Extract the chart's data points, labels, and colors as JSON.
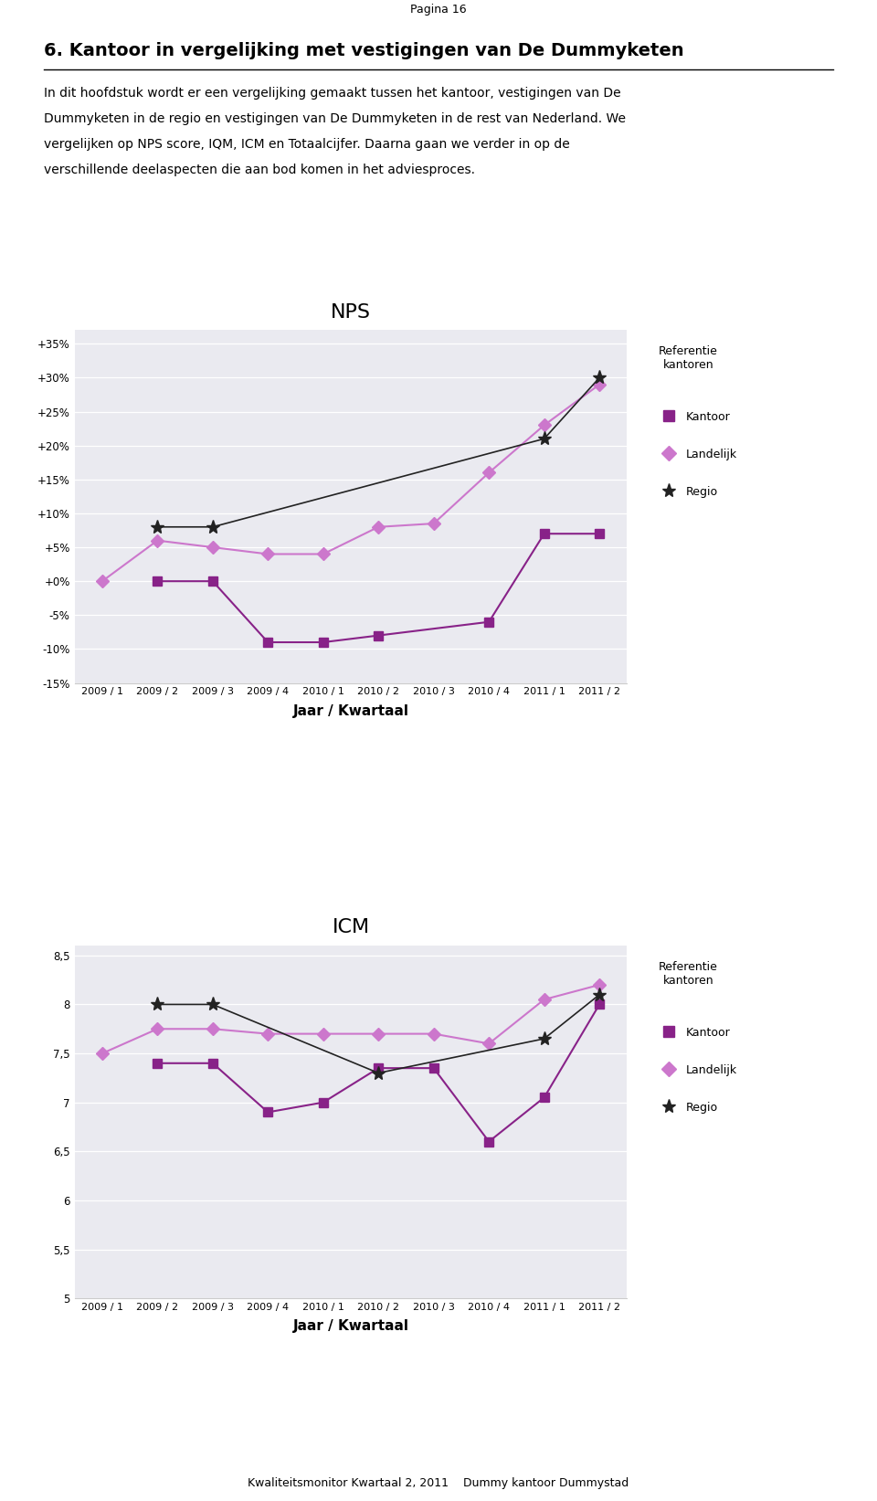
{
  "page_label": "Pagina 16",
  "main_title": "6. Kantoor in vergelijking met vestigingen van De Dummyketen",
  "intro_lines": [
    "In dit hoofdstuk wordt er een vergelijking gemaakt tussen het kantoor, vestigingen van De",
    "Dummyketen in de regio en vestigingen van De Dummyketen in de rest van Nederland. We",
    "vergelijken op NPS score, IQM, ICM en Totaalcijfer. Daarna gaan we verder in op de",
    "verschillende deelaspecten die aan bod komen in het adviesproces."
  ],
  "footer_text": "Kwaliteitsmonitor Kwartaal 2, 2011    Dummy kantoor Dummystad",
  "x_labels": [
    "2009 / 1",
    "2009 / 2",
    "2009 / 3",
    "2009 / 4",
    "2010 / 1",
    "2010 / 2",
    "2010 / 3",
    "2010 / 4",
    "2011 / 1",
    "2011 / 2"
  ],
  "xlabel": "Jaar / Kwartaal",
  "nps_title": "NPS",
  "nps_kantoor": [
    null,
    0.0,
    0.0,
    -9.0,
    -9.0,
    -8.0,
    null,
    -6.0,
    7.0,
    7.0
  ],
  "nps_landelijk": [
    0.0,
    6.0,
    5.0,
    4.0,
    4.0,
    8.0,
    8.5,
    16.0,
    23.0,
    29.0
  ],
  "nps_regio": [
    null,
    8.0,
    8.0,
    null,
    null,
    null,
    null,
    null,
    21.0,
    30.0
  ],
  "nps_ylim": [
    -15,
    37
  ],
  "nps_yticks": [
    -15,
    -10,
    -5,
    0,
    5,
    10,
    15,
    20,
    25,
    30,
    35
  ],
  "nps_ytick_labels": [
    "-15%",
    "-10%",
    "-5%",
    "+0%",
    "+5%",
    "+10%",
    "+15%",
    "+20%",
    "+25%",
    "+30%",
    "+35%"
  ],
  "icm_title": "ICM",
  "icm_kantoor": [
    null,
    7.4,
    7.4,
    6.9,
    7.0,
    7.35,
    7.35,
    6.6,
    7.05,
    8.0
  ],
  "icm_landelijk": [
    7.5,
    7.75,
    7.75,
    7.7,
    7.7,
    7.7,
    7.7,
    7.6,
    8.05,
    8.2
  ],
  "icm_regio": [
    null,
    8.0,
    8.0,
    null,
    null,
    7.3,
    null,
    null,
    7.65,
    8.1
  ],
  "icm_ylim": [
    5.0,
    8.6
  ],
  "icm_yticks": [
    5.0,
    5.5,
    6.0,
    6.5,
    7.0,
    7.5,
    8.0,
    8.5
  ],
  "icm_ytick_labels": [
    "5",
    "5,5",
    "6",
    "6,5",
    "7",
    "7,5",
    "8",
    "8,5"
  ],
  "legend_ref_label": "Referentie\nkantoren",
  "legend_label_kantoor": "Kantoor",
  "legend_label_landelijk": "Landelijk",
  "legend_label_regio": "Regio",
  "color_kantoor": "#882288",
  "color_landelijk": "#CC77CC",
  "color_regio": "#222222",
  "bg_color": "#EAEAF0"
}
